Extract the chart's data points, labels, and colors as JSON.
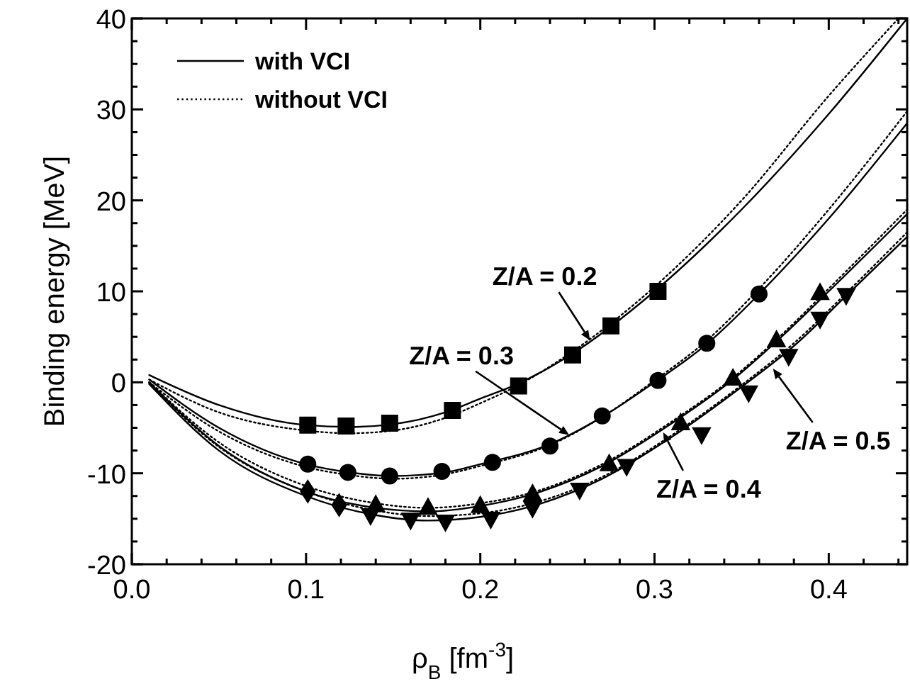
{
  "chart_data": {
    "type": "line",
    "xlabel": "ρ$_{B}$ [fm$^{-3}$]",
    "ylabel": "Binding energy [MeV]",
    "xlim": [
      0,
      0.445
    ],
    "ylim": [
      -20,
      40
    ],
    "xticks": [
      {
        "value": 0,
        "label": "0.0"
      },
      {
        "value": 0.02,
        "label": null
      },
      {
        "value": 0.04,
        "label": null
      },
      {
        "value": 0.06,
        "label": null
      },
      {
        "value": 0.08,
        "label": null
      },
      {
        "value": 0.1,
        "label": "0.1"
      },
      {
        "value": 0.12,
        "label": null
      },
      {
        "value": 0.14,
        "label": null
      },
      {
        "value": 0.16,
        "label": null
      },
      {
        "value": 0.18,
        "label": null
      },
      {
        "value": 0.2,
        "label": "0.2"
      },
      {
        "value": 0.22,
        "label": null
      },
      {
        "value": 0.24,
        "label": null
      },
      {
        "value": 0.26,
        "label": null
      },
      {
        "value": 0.28,
        "label": null
      },
      {
        "value": 0.3,
        "label": "0.3"
      },
      {
        "value": 0.32,
        "label": null
      },
      {
        "value": 0.34,
        "label": null
      },
      {
        "value": 0.36,
        "label": null
      },
      {
        "value": 0.38,
        "label": null
      },
      {
        "value": 0.4,
        "label": "0.4"
      },
      {
        "value": 0.42,
        "label": null
      },
      {
        "value": 0.44,
        "label": null
      }
    ],
    "yticks": [
      -20,
      {
        "value": -17.5,
        "label": null
      },
      {
        "value": -15,
        "label": null
      },
      {
        "value": -12.5,
        "label": null
      },
      -10,
      {
        "value": -7.5,
        "label": null
      },
      {
        "value": -5,
        "label": null
      },
      {
        "value": -2.5,
        "label": null
      },
      0,
      {
        "value": 2.5,
        "label": null
      },
      {
        "value": 5,
        "label": null
      },
      {
        "value": 7.5,
        "label": null
      },
      10,
      {
        "value": 12.5,
        "label": null
      },
      {
        "value": 15,
        "label": null
      },
      {
        "value": 17.5,
        "label": null
      },
      20,
      {
        "value": 22.5,
        "label": null
      },
      {
        "value": 25,
        "label": null
      },
      {
        "value": 27.5,
        "label": null
      },
      30,
      {
        "value": 32.5,
        "label": null
      },
      {
        "value": 35,
        "label": null
      },
      {
        "value": 37.5,
        "label": null
      },
      40
    ],
    "grid": false,
    "legend": "top left",
    "series": [
      {
        "name": "with VCI",
        "color": "#000000",
        "line_style": "solid",
        "marker": "none",
        "x": [
          0.01,
          0.05,
          0.1,
          0.125,
          0.15,
          0.18,
          0.2,
          0.22,
          0.25,
          0.3,
          0.35,
          0.4,
          0.445
        ],
        "values": [
          0.8,
          -2.5,
          -4.7,
          -4.9,
          -4.6,
          -3.3,
          -1.8,
          -0.3,
          2.8,
          10,
          19,
          29.5,
          40
        ]
      },
      {
        "name": "without VCI",
        "color": "#000000",
        "line_style": "dotted",
        "marker": "none",
        "x": [
          0.01,
          0.05,
          0.1,
          0.125,
          0.15,
          0.18,
          0.2,
          0.22,
          0.25,
          0.3,
          0.35,
          0.4,
          0.44
        ],
        "values": [
          0.3,
          -3.3,
          -5.3,
          -5.6,
          -5.3,
          -3.9,
          -2.3,
          -0.5,
          3,
          10.5,
          20,
          31.5,
          40
        ]
      },
      {
        "color": "#000000",
        "line_style": "solid",
        "marker": "none",
        "x": [
          0.01,
          0.05,
          0.1,
          0.125,
          0.15,
          0.18,
          0.2,
          0.24,
          0.27,
          0.3,
          0.33,
          0.36,
          0.4,
          0.445
        ],
        "values": [
          0.3,
          -5,
          -9,
          -9.9,
          -10.3,
          -9.9,
          -9,
          -6.8,
          -3.8,
          0,
          4.2,
          9.7,
          18,
          28.5
        ]
      },
      {
        "color": "#000000",
        "line_style": "dotted",
        "marker": "none",
        "x": [
          0.01,
          0.05,
          0.1,
          0.125,
          0.15,
          0.18,
          0.2,
          0.24,
          0.27,
          0.3,
          0.33,
          0.36,
          0.4,
          0.445
        ],
        "values": [
          0,
          -5.4,
          -9.3,
          -10.2,
          -10.6,
          -10.1,
          -9.2,
          -6.9,
          -3.8,
          0.2,
          4.6,
          10.3,
          19,
          29.8
        ]
      },
      {
        "color": "#000000",
        "line_style": "solid",
        "marker": "none",
        "x": [
          0.01,
          0.05,
          0.1,
          0.14,
          0.17,
          0.2,
          0.23,
          0.27,
          0.31,
          0.345,
          0.37,
          0.4,
          0.445
        ],
        "values": [
          0,
          -7,
          -12,
          -13.8,
          -14.2,
          -13.6,
          -12.3,
          -9.2,
          -4.5,
          0.3,
          4.5,
          10,
          18.5
        ]
      },
      {
        "color": "#000000",
        "line_style": "dotted",
        "marker": "none",
        "x": [
          0.01,
          0.05,
          0.1,
          0.14,
          0.17,
          0.2,
          0.23,
          0.27,
          0.31,
          0.345,
          0.37,
          0.4,
          0.445
        ],
        "values": [
          0,
          -6.6,
          -11.4,
          -13.3,
          -13.8,
          -13.3,
          -12.1,
          -9,
          -4.3,
          0.5,
          4.7,
          10.3,
          19
        ]
      },
      {
        "color": "#000000",
        "line_style": "solid",
        "marker": "none",
        "x": [
          0.01,
          0.05,
          0.1,
          0.14,
          0.17,
          0.2,
          0.23,
          0.27,
          0.31,
          0.35,
          0.38,
          0.41,
          0.445
        ],
        "values": [
          -0.2,
          -7.5,
          -12.5,
          -14.6,
          -15.2,
          -14.8,
          -13.6,
          -10.6,
          -6,
          -0.5,
          4,
          9.5,
          16
        ]
      },
      {
        "color": "#000000",
        "line_style": "dotted",
        "marker": "none",
        "x": [
          0.01,
          0.05,
          0.1,
          0.14,
          0.17,
          0.2,
          0.23,
          0.27,
          0.31,
          0.35,
          0.38,
          0.41,
          0.445
        ],
        "values": [
          -0.1,
          -7.1,
          -12,
          -14.1,
          -14.7,
          -14.4,
          -13.3,
          -10.4,
          -5.8,
          -0.3,
          4.3,
          9.8,
          16.5
        ]
      },
      {
        "type": "scatter",
        "color": "#000000",
        "marker": "square",
        "x": [
          0.101,
          0.123,
          0.148,
          0.184,
          0.222,
          0.253,
          0.275,
          0.302
        ],
        "values": [
          -4.7,
          -4.8,
          -4.5,
          -3.1,
          -0.4,
          3,
          6.2,
          10
        ]
      },
      {
        "type": "scatter",
        "color": "#000000",
        "marker": "circle",
        "x": [
          0.101,
          0.124,
          0.148,
          0.178,
          0.207,
          0.24,
          0.27,
          0.302,
          0.33,
          0.36
        ],
        "values": [
          -9,
          -9.9,
          -10.3,
          -9.8,
          -8.8,
          -7,
          -3.7,
          0.2,
          4.3,
          9.7
        ]
      },
      {
        "type": "scatter",
        "color": "#000000",
        "marker": "triangle",
        "x": [
          0.14,
          0.17,
          0.2,
          0.23,
          0.274,
          0.315,
          0.345,
          0.37,
          0.395
        ],
        "values": [
          -13.5,
          -13.8,
          -13.6,
          -12.3,
          -9,
          -4.5,
          0.4,
          4.6,
          9.8
        ]
      },
      {
        "type": "scatter",
        "color": "#000000",
        "marker": "triangle-down",
        "x": [
          0.137,
          0.16,
          0.18,
          0.206,
          0.23,
          0.257,
          0.284,
          0.327,
          0.354,
          0.377,
          0.395,
          0.41
        ],
        "values": [
          -14.6,
          -15.1,
          -15.3,
          -15,
          -13.8,
          -11.8,
          -9.2,
          -5.7,
          -1.1,
          2.9,
          7,
          9.6
        ]
      },
      {
        "type": "scatter",
        "color": "#000000",
        "marker": "diamond",
        "x": [
          0.101,
          0.119
        ],
        "values": [
          -12,
          -13.5
        ]
      }
    ],
    "annotations": [
      {
        "text": "Z/A = 0.2",
        "x": 0.263,
        "y": 4.6
      },
      {
        "text": "Z/A = 0.3",
        "x": 0.251,
        "y": -5.8
      },
      {
        "text": "Z/A = 0.4",
        "x": 0.305,
        "y": -5.5
      },
      {
        "text": "Z/A = 0.5",
        "x": 0.368,
        "y": 1.5
      }
    ]
  }
}
